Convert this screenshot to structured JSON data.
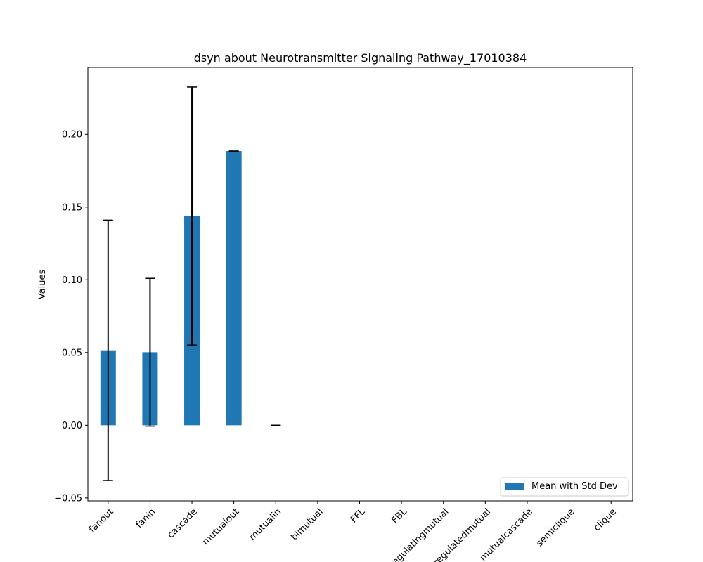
{
  "chart_data": {
    "type": "bar",
    "title": "dsyn about Neurotransmitter Signaling Pathway_17010384",
    "xlabel": "",
    "ylabel": "Values",
    "categories": [
      "fanout",
      "fanin",
      "cascade",
      "mutualout",
      "mutualin",
      "bimutual",
      "FFL",
      "FBL",
      "regulatingmutual",
      "regulatedmutual",
      "mutualcascade",
      "semiclique",
      "clique"
    ],
    "series": [
      {
        "name": "Mean with Std Dev",
        "values": [
          0.0515,
          0.0502,
          0.1438,
          0.1885,
          0.0,
          null,
          null,
          null,
          null,
          null,
          null,
          null,
          null
        ],
        "std": [
          0.0895,
          0.0508,
          0.0887,
          0.0,
          0.0,
          null,
          null,
          null,
          null,
          null,
          null,
          null,
          null
        ]
      }
    ],
    "ylim": [
      -0.052,
      0.246
    ],
    "yticks": [
      "−0.05",
      "0.00",
      "0.05",
      "0.10",
      "0.15",
      "0.20"
    ],
    "ytick_values": [
      -0.05,
      0.0,
      0.05,
      0.1,
      0.15,
      0.2
    ],
    "grid": false,
    "legend_position": "lower-right",
    "colors": {
      "bar": "#1f77b4",
      "error": "#000000",
      "axes": "#000000"
    }
  }
}
